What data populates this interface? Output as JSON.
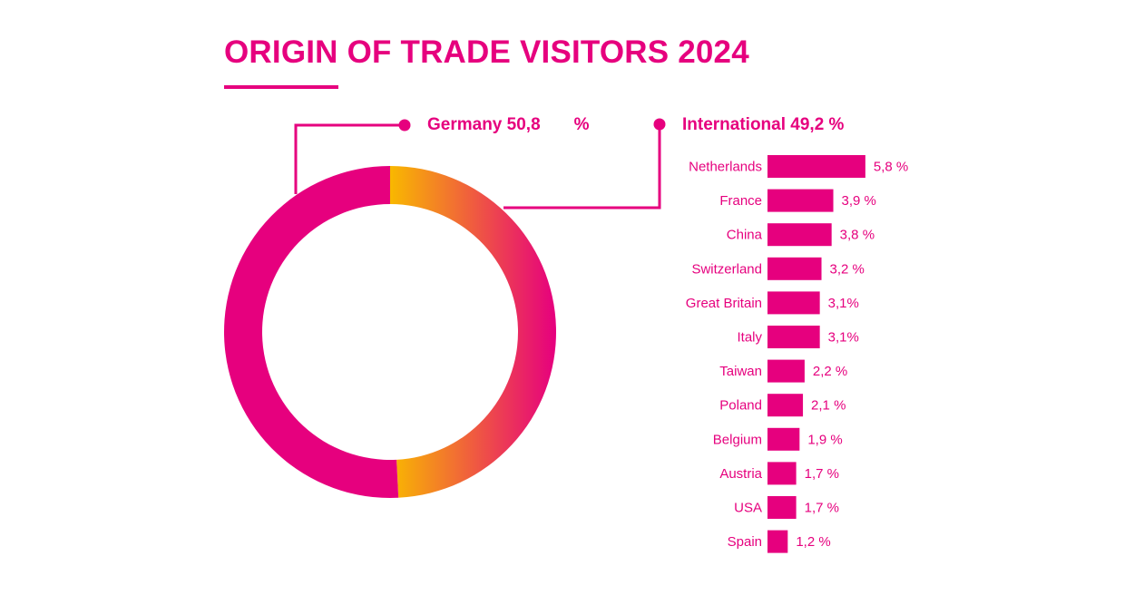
{
  "colors": {
    "brand": "#E6007E",
    "gradient_start": "#F9B800",
    "gradient_end": "#E6007E"
  },
  "chart_data": [
    {
      "type": "pie",
      "variant": "donut",
      "title": "ORIGIN OF TRADE VISITORS 2024",
      "slices": [
        {
          "name": "Germany",
          "value": 50.8,
          "label_name": "Germany 50,8",
          "label_unit": "%"
        },
        {
          "name": "International",
          "value": 49.2,
          "label": "International 49,2 %"
        }
      ]
    },
    {
      "type": "bar",
      "orientation": "horizontal",
      "title": "International 49,2 %",
      "categories": [
        "Netherlands",
        "France",
        "China",
        "Switzerland",
        "Great Britain",
        "Italy",
        "Taiwan",
        "Poland",
        "Belgium",
        "Austria",
        "USA",
        "Spain"
      ],
      "values": [
        5.8,
        3.9,
        3.8,
        3.2,
        3.1,
        3.1,
        2.2,
        2.1,
        1.9,
        1.7,
        1.7,
        1.2
      ],
      "value_labels": [
        "5,8 %",
        "3,9 %",
        "3,8 %",
        "3,2 %",
        "3,1%",
        "3,1%",
        "2,2 %",
        "2,1 %",
        "1,9 %",
        "1,7 %",
        "1,7 %",
        "1,2 %"
      ],
      "unit": "%"
    }
  ]
}
